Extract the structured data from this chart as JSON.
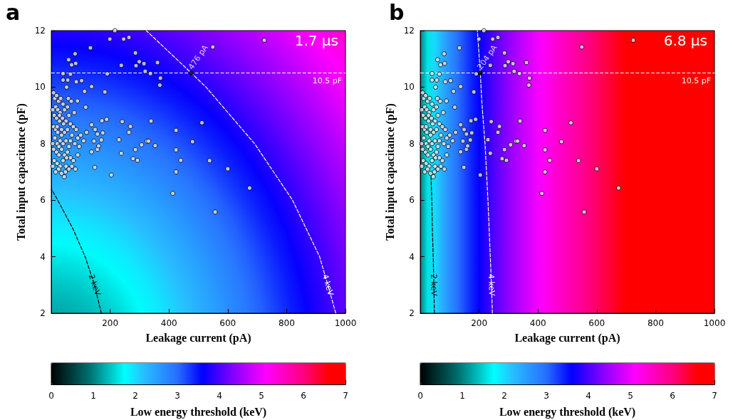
{
  "chart_data": [
    {
      "type": "scatter",
      "title": "a",
      "xlabel": "Leakage current (pA)",
      "ylabel": "Total input capacitance (pF)",
      "clabel": "Low energy threshold (keV)",
      "xlim": [
        0,
        1000
      ],
      "ylim": [
        2,
        12
      ],
      "xticks": [
        200,
        400,
        600,
        800,
        1000
      ],
      "yticks": [
        2,
        4,
        6,
        8,
        10,
        12
      ],
      "clim": [
        0,
        7
      ],
      "cticks": [
        0,
        1,
        2,
        3,
        4,
        5,
        6,
        7
      ],
      "marker": "circle",
      "series": [
        {
          "type": "scatter",
          "color": "#e6e6f0",
          "x": [
            199,
            246,
            264,
            216,
            133,
            81,
            286,
            549,
            724,
            59,
            69,
            83,
            238,
            288,
            299,
            315,
            361,
            40,
            65,
            190,
            319,
            337,
            371,
            369,
            40,
            56,
            85,
            103,
            52,
            137,
            113,
            182,
            117,
            89,
            172,
            188,
            241,
            269,
            264,
            339,
            512,
            424,
            230,
            325,
            331,
            307,
            353,
            480,
            286,
            238,
            424,
            137,
            157,
            278,
            293,
            440,
            538,
            424,
            600,
            148,
            204,
            44,
            674,
            137,
            157,
            149,
            175,
            170,
            161,
            145,
            413,
            557,
            8,
            12,
            18,
            25,
            32,
            40,
            15,
            22,
            30,
            45,
            55,
            60,
            10,
            18,
            28,
            38,
            50,
            65,
            75,
            85,
            8,
            15,
            22,
            35,
            45,
            55,
            70,
            90,
            100,
            110,
            120,
            12,
            20,
            30,
            40,
            50,
            60,
            80,
            95,
            8,
            18,
            26,
            35,
            45,
            55,
            65,
            75,
            90,
            10,
            20,
            30,
            40,
            50,
            60,
            70,
            82,
            15,
            25,
            35,
            48,
            28,
            35,
            42,
            20,
            26,
            52,
            65,
            58,
            68,
            78,
            5,
            5,
            5
          ],
          "values": [
            11.7,
            11.7,
            11.76,
            12.0,
            11.39,
            11.18,
            11.21,
            11.42,
            11.66,
            10.97,
            10.79,
            10.84,
            10.77,
            10.76,
            10.9,
            10.83,
            10.87,
            10.48,
            10.46,
            10.47,
            10.56,
            10.48,
            10.32,
            10.07,
            10.25,
            10.25,
            10.19,
            10.23,
            10.0,
            10.02,
            9.85,
            9.83,
            9.29,
            9.51,
            8.81,
            8.86,
            8.78,
            8.61,
            8.4,
            8.8,
            8.74,
            8.47,
            8.14,
            8.09,
            8.09,
            7.96,
            7.93,
            8.07,
            7.79,
            7.66,
            7.78,
            7.71,
            7.8,
            7.47,
            7.41,
            7.41,
            7.4,
            7.0,
            7.11,
            7.16,
            6.89,
            6.83,
            6.43,
            8.67,
            8.34,
            8.5,
            8.38,
            8.13,
            7.92,
            8.09,
            6.24,
            5.58,
            9.8,
            9.6,
            9.7,
            9.5,
            9.6,
            9.4,
            9.3,
            9.2,
            9.1,
            9.2,
            9.3,
            9.0,
            9.0,
            8.9,
            8.8,
            8.9,
            8.8,
            8.7,
            8.6,
            8.5,
            8.6,
            8.5,
            8.4,
            8.5,
            8.4,
            8.5,
            8.3,
            8.2,
            8.3,
            8.1,
            8.4,
            8.2,
            8.0,
            8.1,
            8.0,
            8.1,
            7.9,
            8.0,
            7.9,
            7.8,
            7.7,
            7.6,
            7.8,
            7.6,
            7.7,
            7.5,
            7.4,
            7.6,
            7.4,
            7.3,
            7.2,
            7.4,
            7.2,
            7.1,
            7.2,
            7.1,
            7.0,
            7.1,
            6.95,
            7.0,
            9.0,
            8.3,
            8.7,
            8.6,
            7.9,
            7.5,
            8.1,
            9.6,
            9.5,
            9.1,
            9.2,
            8.0,
            7.2
          ]
        },
        {
          "type": "scatter",
          "color": "#000000",
          "x": [
            476
          ],
          "values": [
            10.5
          ]
        },
        {
          "type": "line",
          "name": "2 keV",
          "color": "#000000",
          "line_style": "dashed",
          "marker": "none",
          "x": [
            170,
            147,
            115,
            73,
            22,
            0
          ],
          "values": [
            2,
            3,
            4,
            5,
            6,
            6.4
          ]
        },
        {
          "type": "line",
          "name": "4 keV",
          "color": "#ffffff",
          "line_style": "dashed",
          "marker": "none",
          "x": [
            967,
            940,
            912,
            820,
            691,
            526,
            476,
            323
          ],
          "values": [
            2,
            3,
            4,
            6,
            8,
            10,
            10.5,
            12
          ]
        }
      ],
      "annotations": [
        "1.7 μs",
        {
          "text": "476 pA",
          "x": 476,
          "y": 10.5
        }
      ],
      "ref_lines": [
        {
          "axis": "y",
          "value": 10.5,
          "label": "10.5 pF",
          "color": "#ffffff",
          "line_style": "dashed"
        }
      ]
    },
    {
      "type": "scatter",
      "title": "b",
      "xlabel": "Leakage current (pA)",
      "ylabel": "Total input capacitance (pF)",
      "clabel": "Low energy threshold (keV)",
      "xlim": [
        0,
        1000
      ],
      "ylim": [
        2,
        12
      ],
      "xticks": [
        200,
        400,
        600,
        800,
        1000
      ],
      "yticks": [
        2,
        4,
        6,
        8,
        10,
        12
      ],
      "clim": [
        0,
        7
      ],
      "cticks": [
        0,
        1,
        2,
        3,
        4,
        5,
        6,
        7
      ],
      "marker": "circle",
      "series": [
        {
          "type": "scatter",
          "color": "#e6e6f0",
          "x": [
            199,
            246,
            264,
            216,
            133,
            81,
            286,
            549,
            724,
            59,
            69,
            83,
            238,
            288,
            299,
            315,
            361,
            40,
            65,
            190,
            319,
            337,
            371,
            369,
            40,
            56,
            85,
            103,
            52,
            137,
            113,
            182,
            117,
            89,
            172,
            188,
            241,
            269,
            264,
            339,
            512,
            424,
            230,
            325,
            331,
            307,
            353,
            480,
            286,
            238,
            424,
            137,
            157,
            278,
            293,
            440,
            538,
            424,
            600,
            148,
            204,
            44,
            674,
            137,
            157,
            149,
            175,
            170,
            161,
            145,
            413,
            557,
            8,
            12,
            18,
            25,
            32,
            40,
            15,
            22,
            30,
            45,
            55,
            60,
            10,
            18,
            28,
            38,
            50,
            65,
            75,
            85,
            8,
            15,
            22,
            35,
            45,
            55,
            70,
            90,
            100,
            110,
            120,
            12,
            20,
            30,
            40,
            50,
            60,
            80,
            95,
            8,
            18,
            26,
            35,
            45,
            55,
            65,
            75,
            90,
            10,
            20,
            30,
            40,
            50,
            60,
            70,
            82,
            15,
            25,
            35,
            48,
            28,
            35,
            42,
            20,
            26,
            52,
            65,
            58,
            68,
            78,
            5,
            5,
            5
          ],
          "values": [
            11.7,
            11.7,
            11.76,
            12.0,
            11.39,
            11.18,
            11.21,
            11.42,
            11.66,
            10.97,
            10.79,
            10.84,
            10.77,
            10.76,
            10.9,
            10.83,
            10.87,
            10.48,
            10.46,
            10.47,
            10.56,
            10.48,
            10.32,
            10.07,
            10.25,
            10.25,
            10.19,
            10.23,
            10.0,
            10.02,
            9.85,
            9.83,
            9.29,
            9.51,
            8.81,
            8.86,
            8.78,
            8.61,
            8.4,
            8.8,
            8.74,
            8.47,
            8.14,
            8.09,
            8.09,
            7.96,
            7.93,
            8.07,
            7.79,
            7.66,
            7.78,
            7.71,
            7.8,
            7.47,
            7.41,
            7.41,
            7.4,
            7.0,
            7.11,
            7.16,
            6.89,
            6.83,
            6.43,
            8.67,
            8.34,
            8.5,
            8.38,
            8.13,
            7.92,
            8.09,
            6.24,
            5.58,
            9.8,
            9.6,
            9.7,
            9.5,
            9.6,
            9.4,
            9.3,
            9.2,
            9.1,
            9.2,
            9.3,
            9.0,
            9.0,
            8.9,
            8.8,
            8.9,
            8.8,
            8.7,
            8.6,
            8.5,
            8.6,
            8.5,
            8.4,
            8.5,
            8.4,
            8.5,
            8.3,
            8.2,
            8.3,
            8.1,
            8.4,
            8.2,
            8.0,
            8.1,
            8.0,
            8.1,
            7.9,
            8.0,
            7.9,
            7.8,
            7.7,
            7.6,
            7.8,
            7.6,
            7.7,
            7.5,
            7.4,
            7.6,
            7.4,
            7.3,
            7.2,
            7.4,
            7.2,
            7.1,
            7.2,
            7.1,
            7.0,
            7.1,
            6.95,
            7.0,
            9.0,
            8.3,
            8.7,
            8.6,
            7.9,
            7.5,
            8.1,
            9.6,
            9.5,
            9.1,
            9.2,
            8.0,
            7.2
          ]
        },
        {
          "type": "scatter",
          "color": "#000000",
          "x": [
            204
          ],
          "values": [
            10.5
          ]
        },
        {
          "type": "line",
          "name": "2 keV",
          "color": "#000000",
          "line_style": "dashed",
          "marker": "none",
          "x": [
            48,
            46,
            44,
            41,
            39,
            36
          ],
          "values": [
            2,
            3,
            4,
            5,
            6,
            7
          ]
        },
        {
          "type": "line",
          "name": "4 keV",
          "color": "#ffffff",
          "line_style": "dashed",
          "marker": "none",
          "x": [
            245,
            242,
            238,
            230,
            220,
            209,
            204,
            194
          ],
          "values": [
            2,
            3,
            4,
            6,
            8,
            9.5,
            10.5,
            12
          ]
        }
      ],
      "annotations": [
        "6.8 μs",
        {
          "text": "204 pA",
          "x": 204,
          "y": 10.5
        }
      ],
      "ref_lines": [
        {
          "axis": "y",
          "value": 10.5,
          "label": "10.5 pF",
          "color": "#ffffff",
          "line_style": "dashed"
        }
      ]
    }
  ]
}
